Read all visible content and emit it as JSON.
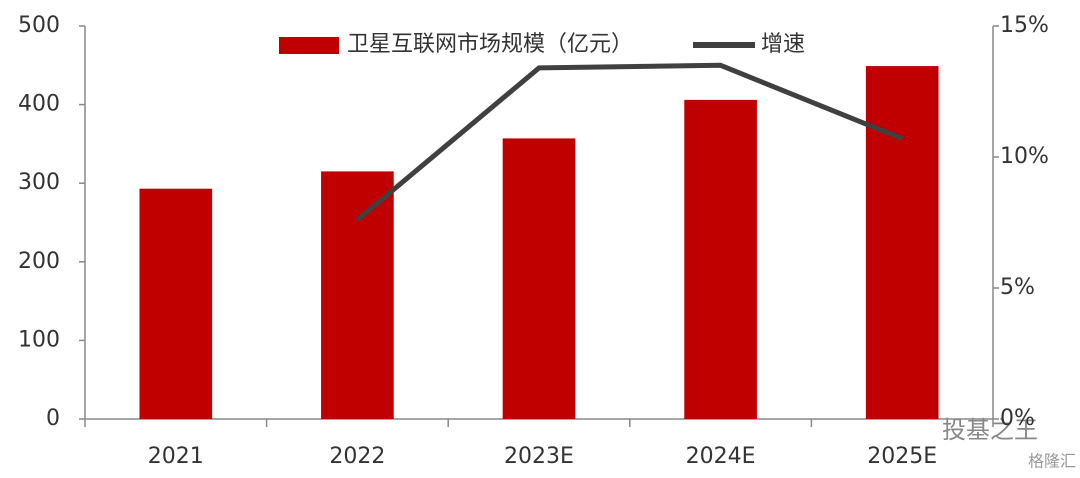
{
  "chart_data": {
    "type": "bar",
    "categories": [
      "2021",
      "2022",
      "2023E",
      "2024E",
      "2025E"
    ],
    "series": [
      {
        "name": "卫星互联网市场规模（亿元）",
        "type": "bar",
        "color": "#c00000",
        "values": [
          293,
          315,
          357,
          406,
          449
        ]
      },
      {
        "name": "增速",
        "type": "line",
        "color": "#404040",
        "axis": "y2",
        "values": [
          null,
          7.6,
          13.4,
          13.5,
          10.7
        ]
      }
    ],
    "ylim": [
      0,
      500
    ],
    "yticks": [
      0,
      100,
      200,
      300,
      400,
      500
    ],
    "y2lim": [
      0,
      15
    ],
    "y2ticks": [
      {
        "value": 0,
        "label": "0%"
      },
      {
        "value": 5,
        "label": "5%"
      },
      {
        "value": 10,
        "label": "10%"
      },
      {
        "value": 15,
        "label": "15%"
      }
    ],
    "legend": "top",
    "watermark": [
      "投基之王",
      "格隆汇"
    ]
  }
}
